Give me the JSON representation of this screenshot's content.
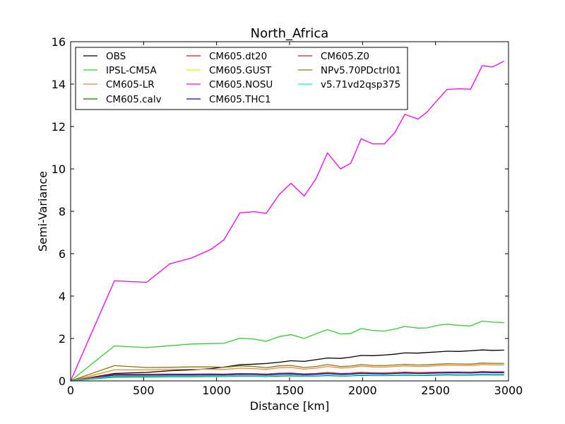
{
  "chart_data": {
    "type": "line",
    "title": "North_Africa",
    "xlabel": "Distance [km]",
    "ylabel": "Semi-Variance",
    "xlim": [
      0,
      3000
    ],
    "ylim": [
      0,
      16
    ],
    "xticks": [
      "0",
      "500",
      "1000",
      "1500",
      "2000",
      "2500",
      "3000"
    ],
    "yticks": [
      "0",
      "2",
      "4",
      "6",
      "8",
      "10",
      "12",
      "14",
      "16"
    ],
    "grid": false,
    "legend_position": "top-left",
    "legend_columns": 3,
    "x": [
      0,
      300,
      520,
      680,
      830,
      960,
      1050,
      1160,
      1260,
      1340,
      1430,
      1510,
      1600,
      1680,
      1760,
      1850,
      1920,
      1990,
      2070,
      2150,
      2220,
      2290,
      2380,
      2440,
      2520,
      2580,
      2660,
      2740,
      2820,
      2890,
      2970
    ],
    "series": [
      {
        "name": "OBS",
        "color": "#000000",
        "values": [
          0,
          0.35,
          0.4,
          0.48,
          0.52,
          0.58,
          0.65,
          0.76,
          0.79,
          0.82,
          0.88,
          0.95,
          0.92,
          1.0,
          1.08,
          1.06,
          1.12,
          1.2,
          1.19,
          1.22,
          1.26,
          1.32,
          1.31,
          1.34,
          1.37,
          1.4,
          1.39,
          1.42,
          1.46,
          1.44,
          1.45
        ]
      },
      {
        "name": "IPSL-CM5A",
        "color": "#33cc33",
        "values": [
          0,
          1.65,
          1.57,
          1.66,
          1.74,
          1.76,
          1.77,
          2.01,
          1.97,
          1.87,
          2.09,
          2.18,
          2.0,
          2.22,
          2.42,
          2.21,
          2.24,
          2.47,
          2.38,
          2.35,
          2.44,
          2.57,
          2.49,
          2.5,
          2.63,
          2.67,
          2.62,
          2.59,
          2.82,
          2.77,
          2.75
        ]
      },
      {
        "name": "CM605-LR",
        "color": "#ee8833",
        "values": [
          0,
          0.52,
          0.52,
          0.54,
          0.55,
          0.55,
          0.54,
          0.6,
          0.58,
          0.54,
          0.62,
          0.64,
          0.55,
          0.6,
          0.68,
          0.61,
          0.63,
          0.7,
          0.66,
          0.65,
          0.68,
          0.71,
          0.68,
          0.69,
          0.72,
          0.74,
          0.73,
          0.72,
          0.77,
          0.76,
          0.76
        ]
      },
      {
        "name": "CM605.calv",
        "color": "#008000",
        "values": [
          0,
          0.18,
          0.19,
          0.2,
          0.2,
          0.21,
          0.21,
          0.23,
          0.22,
          0.21,
          0.23,
          0.24,
          0.22,
          0.23,
          0.25,
          0.23,
          0.24,
          0.26,
          0.25,
          0.25,
          0.26,
          0.27,
          0.26,
          0.26,
          0.27,
          0.28,
          0.27,
          0.27,
          0.29,
          0.28,
          0.28
        ]
      },
      {
        "name": "CM605.dt20",
        "color": "#ee1111",
        "values": [
          0,
          0.3,
          0.3,
          0.31,
          0.31,
          0.32,
          0.31,
          0.34,
          0.33,
          0.31,
          0.35,
          0.36,
          0.32,
          0.34,
          0.38,
          0.34,
          0.35,
          0.39,
          0.37,
          0.36,
          0.38,
          0.4,
          0.38,
          0.39,
          0.4,
          0.41,
          0.41,
          0.4,
          0.43,
          0.42,
          0.42
        ]
      },
      {
        "name": "CM605.GUST",
        "color": "#e8e800",
        "values": [
          0,
          0.28,
          0.28,
          0.29,
          0.29,
          0.3,
          0.29,
          0.32,
          0.31,
          0.29,
          0.33,
          0.34,
          0.3,
          0.32,
          0.36,
          0.32,
          0.33,
          0.37,
          0.35,
          0.34,
          0.36,
          0.38,
          0.36,
          0.37,
          0.38,
          0.39,
          0.39,
          0.38,
          0.41,
          0.4,
          0.4
        ]
      },
      {
        "name": "CM605.NOSU",
        "color": "#ff00ff",
        "values": [
          0,
          4.72,
          4.65,
          5.52,
          5.8,
          6.2,
          6.65,
          7.93,
          7.98,
          7.9,
          8.8,
          9.32,
          8.72,
          9.52,
          10.75,
          10.0,
          10.27,
          11.42,
          11.18,
          11.18,
          11.7,
          12.57,
          12.35,
          12.67,
          13.3,
          13.75,
          13.78,
          13.76,
          14.87,
          14.81,
          15.08
        ]
      },
      {
        "name": "CM605.THC1",
        "color": "#0000ee",
        "values": [
          0,
          0.27,
          0.27,
          0.28,
          0.28,
          0.29,
          0.28,
          0.31,
          0.3,
          0.28,
          0.32,
          0.33,
          0.29,
          0.31,
          0.35,
          0.31,
          0.32,
          0.36,
          0.34,
          0.33,
          0.35,
          0.37,
          0.35,
          0.36,
          0.37,
          0.38,
          0.38,
          0.37,
          0.4,
          0.39,
          0.39
        ]
      },
      {
        "name": "CM605.Z0",
        "color": "#cc2222",
        "values": [
          0,
          0.31,
          0.31,
          0.32,
          0.32,
          0.33,
          0.32,
          0.35,
          0.34,
          0.32,
          0.36,
          0.37,
          0.33,
          0.35,
          0.39,
          0.35,
          0.36,
          0.4,
          0.38,
          0.37,
          0.39,
          0.41,
          0.39,
          0.4,
          0.41,
          0.42,
          0.42,
          0.41,
          0.44,
          0.43,
          0.43
        ]
      },
      {
        "name": "NPv5.70PDctrl01",
        "color": "#887711",
        "values": [
          0,
          0.72,
          0.63,
          0.64,
          0.66,
          0.66,
          0.64,
          0.71,
          0.68,
          0.62,
          0.71,
          0.73,
          0.63,
          0.68,
          0.77,
          0.68,
          0.7,
          0.77,
          0.73,
          0.72,
          0.75,
          0.78,
          0.75,
          0.76,
          0.79,
          0.81,
          0.8,
          0.79,
          0.84,
          0.83,
          0.83
        ]
      },
      {
        "name": "v5.71vd2qsp375",
        "color": "#00eeee",
        "values": [
          0,
          0.22,
          0.22,
          0.23,
          0.23,
          0.24,
          0.23,
          0.25,
          0.24,
          0.23,
          0.26,
          0.27,
          0.24,
          0.25,
          0.28,
          0.25,
          0.26,
          0.29,
          0.27,
          0.27,
          0.28,
          0.3,
          0.28,
          0.29,
          0.3,
          0.31,
          0.3,
          0.3,
          0.32,
          0.31,
          0.31
        ]
      }
    ]
  }
}
